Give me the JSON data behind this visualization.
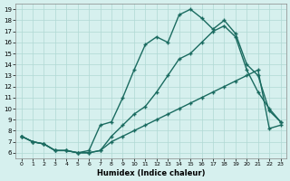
{
  "xlabel": "Humidex (Indice chaleur)",
  "ylabel": "",
  "bg_color": "#d6f0ee",
  "grid_color": "#b0d8d4",
  "line_color": "#1a6b60",
  "xlim": [
    0,
    23
  ],
  "ylim": [
    6,
    19
  ],
  "xticks": [
    0,
    1,
    2,
    3,
    4,
    5,
    6,
    7,
    8,
    9,
    10,
    11,
    12,
    13,
    14,
    15,
    16,
    17,
    18,
    19,
    20,
    21,
    22,
    23
  ],
  "yticks": [
    6,
    7,
    8,
    9,
    10,
    11,
    12,
    13,
    14,
    15,
    16,
    17,
    18,
    19
  ],
  "line1_x": [
    0,
    1,
    2,
    3,
    4,
    5,
    6,
    7,
    8,
    9,
    10,
    11,
    12,
    13,
    14,
    15,
    16,
    17,
    18,
    19,
    20,
    21,
    22,
    23
  ],
  "line1_y": [
    7.5,
    7.0,
    6.8,
    6.2,
    6.2,
    6.0,
    6.0,
    6.2,
    7.5,
    8.5,
    9.5,
    10.2,
    11.5,
    13.0,
    14.5,
    15.0,
    16.0,
    17.0,
    17.5,
    16.5,
    13.5,
    11.5,
    10.0,
    8.8
  ],
  "line2_x": [
    0,
    1,
    2,
    3,
    4,
    5,
    6,
    7,
    8,
    9,
    10,
    11,
    12,
    13,
    14,
    15,
    16,
    17,
    18,
    19,
    20,
    21,
    22,
    23
  ],
  "line2_y": [
    7.5,
    7.0,
    6.8,
    6.2,
    6.2,
    6.0,
    6.2,
    8.5,
    8.8,
    11.0,
    13.5,
    15.8,
    16.5,
    16.0,
    18.5,
    19.0,
    18.2,
    17.2,
    18.0,
    16.8,
    14.0,
    13.0,
    9.8,
    8.8
  ],
  "line3_x": [
    0,
    1,
    2,
    3,
    4,
    5,
    6,
    7,
    8,
    9,
    10,
    11,
    12,
    13,
    14,
    15,
    16,
    17,
    18,
    19,
    20,
    21,
    22,
    23
  ],
  "line3_y": [
    7.5,
    7.0,
    6.8,
    6.2,
    6.2,
    6.0,
    6.0,
    6.2,
    7.0,
    7.5,
    8.0,
    8.5,
    9.0,
    9.5,
    10.0,
    10.5,
    11.0,
    11.5,
    12.0,
    12.5,
    13.0,
    13.5,
    8.2,
    8.5
  ]
}
